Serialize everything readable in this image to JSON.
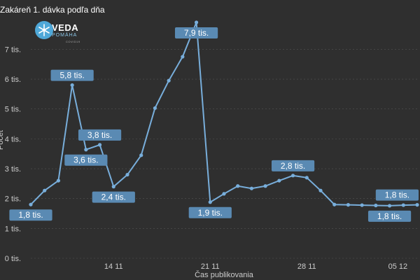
{
  "title": "Zakáreň 1. dávka podľa dňa",
  "logo": {
    "main": "VEDA",
    "sub": "POMÁHA",
    "tiny": "COVID19"
  },
  "colors": {
    "background": "#2f2f2f",
    "line": "#78aedb",
    "label_bg": "#5a8ab3",
    "text": "#cccccc",
    "grid": "#555555"
  },
  "chart_data": {
    "type": "line",
    "title": "Zakáreň 1. dávka podľa dňa",
    "xlabel": "Čas publikovania",
    "ylabel": "Počet",
    "ylim": [
      0,
      7900
    ],
    "x_ticks": [
      {
        "label": "14 11",
        "x": 6
      },
      {
        "label": "21 11",
        "x": 13
      },
      {
        "label": "28 11",
        "x": 20
      },
      {
        "label": "05 12",
        "x": 26.6
      }
    ],
    "y_ticks": [
      {
        "label": "0 tis.",
        "value": 0
      },
      {
        "label": "1 tis.",
        "value": 1000
      },
      {
        "label": "2 tis.",
        "value": 2000
      },
      {
        "label": "3 tis.",
        "value": 3000
      },
      {
        "label": "4 tis.",
        "value": 4000
      },
      {
        "label": "5 tis.",
        "value": 5000
      },
      {
        "label": "6 tis.",
        "value": 6000
      },
      {
        "label": "7 tis.",
        "value": 7000
      }
    ],
    "series": [
      {
        "x": [
          0,
          1,
          2,
          3,
          4,
          5,
          6,
          7,
          8,
          9,
          10,
          11,
          12,
          13,
          14,
          15,
          16,
          17,
          18,
          19,
          20,
          21,
          22,
          23,
          24,
          25,
          26,
          27,
          28
        ],
        "values": [
          1800,
          2270,
          2600,
          5800,
          3640,
          3800,
          2400,
          2800,
          3450,
          5030,
          5950,
          6750,
          7900,
          1880,
          2160,
          2420,
          2340,
          2420,
          2600,
          2770,
          2700,
          2270,
          1800,
          1790,
          1780,
          1770,
          1760,
          1780,
          1790
        ]
      }
    ],
    "data_labels": [
      {
        "i": 0,
        "text": "1,8 tis.",
        "pos": "below"
      },
      {
        "i": 3,
        "text": "5,8 tis.",
        "pos": "above"
      },
      {
        "i": 4,
        "text": "3,6 tis.",
        "pos": "below"
      },
      {
        "i": 5,
        "text": "3,8 tis.",
        "pos": "above"
      },
      {
        "i": 6,
        "text": "2,4 tis.",
        "pos": "below"
      },
      {
        "i": 12,
        "text": "7,9 tis.",
        "pos": "below"
      },
      {
        "i": 13,
        "text": "1,9 tis.",
        "pos": "below"
      },
      {
        "i": 19,
        "text": "2,8 tis.",
        "pos": "above"
      },
      {
        "i": 26,
        "text": "1,8 tis.",
        "pos": "below"
      },
      {
        "i": 28,
        "text": "1,8 tis.",
        "pos": "above"
      }
    ]
  }
}
